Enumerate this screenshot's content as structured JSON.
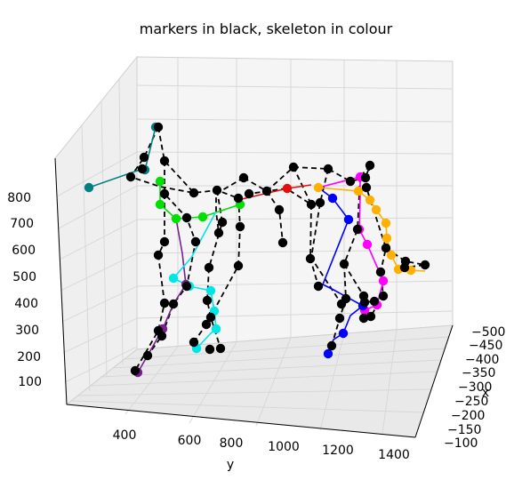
{
  "chart_data": {
    "type": "3d-scatter-line",
    "title": "markers in black, skeleton in colour",
    "xlabel": "x",
    "ylabel": "y",
    "zlabel": "",
    "x_ticks": [
      "-500",
      "-450",
      "-400",
      "-350",
      "-300",
      "-250",
      "-200",
      "-150",
      "-100"
    ],
    "y_ticks": [
      "400",
      "600",
      "800",
      "1000",
      "1200",
      "1400"
    ],
    "z_ticks": [
      "100",
      "200",
      "300",
      "400",
      "500",
      "600",
      "700",
      "800"
    ],
    "grid": true,
    "marker_color": "#000000",
    "series": [
      {
        "color": "#000000",
        "style": "dashed",
        "segments": [
          [
            [
              178,
              143
            ],
            [
              162,
              177
            ],
            [
              147,
              199
            ],
            [
              180,
              210
            ],
            [
              218,
              217
            ],
            [
              244,
              214
            ],
            [
              268,
              223
            ]
          ],
          [
            [
              178,
              143
            ],
            [
              185,
              181
            ],
            [
              218,
              217
            ]
          ],
          [
            [
              185,
              181
            ],
            [
              185,
              218
            ],
            [
              210,
              245
            ],
            [
              220,
              272
            ],
            [
              210,
              322
            ],
            [
              195,
              342
            ],
            [
              182,
              378
            ],
            [
              166,
              400
            ]
          ],
          [
            [
              185,
              218
            ],
            [
              185,
              272
            ],
            [
              178,
              287
            ],
            [
              185,
              341
            ],
            [
              178,
              372
            ],
            [
              152,
              417
            ]
          ],
          [
            [
              244,
              214
            ],
            [
              250,
              250
            ],
            [
              235,
              301
            ],
            [
              233,
              338
            ],
            [
              237,
              357
            ],
            [
              248,
              392
            ],
            [
              236,
              393
            ]
          ],
          [
            [
              268,
              223
            ],
            [
              270,
              255
            ],
            [
              268,
              299
            ],
            [
              232,
              365
            ],
            [
              218,
              385
            ]
          ],
          [
            [
              274,
              200
            ],
            [
              243,
              218
            ],
            [
              243,
              238
            ],
            [
              246,
              262
            ]
          ],
          [
            [
              274,
              200
            ],
            [
              300,
              215
            ],
            [
              330,
              188
            ],
            [
              350,
              230
            ],
            [
              322,
              212
            ],
            [
              280,
              218
            ]
          ],
          [
            [
              330,
              188
            ],
            [
              369,
              190
            ],
            [
              394,
              204
            ],
            [
              411,
              200
            ],
            [
              416,
              186
            ],
            [
              405,
              199
            ]
          ],
          [
            [
              300,
              215
            ],
            [
              314,
              236
            ],
            [
              318,
              273
            ],
            [
              312,
              275
            ]
          ],
          [
            [
              350,
              230
            ],
            [
              349,
              291
            ],
            [
              358,
              322
            ],
            [
              361,
              325
            ]
          ],
          [
            [
              369,
              190
            ],
            [
              360,
              228
            ],
            [
              350,
              290
            ],
            [
              384,
              342
            ]
          ],
          [
            [
              405,
              199
            ],
            [
              402,
              258
            ],
            [
              387,
              297
            ],
            [
              389,
              336
            ],
            [
              382,
              358
            ],
            [
              373,
              389
            ]
          ],
          [
            [
              416,
              186
            ],
            [
              412,
              211
            ],
            [
              434,
              279
            ],
            [
              428,
              306
            ],
            [
              431,
              333
            ],
            [
              426,
              340
            ],
            [
              417,
              356
            ],
            [
              409,
              358
            ]
          ],
          [
            [
              387,
              297
            ],
            [
              409,
              333
            ],
            [
              410,
              340
            ],
            [
              421,
              339
            ]
          ],
          [
            [
              434,
              279
            ],
            [
              456,
              294
            ],
            [
              478,
              298
            ],
            [
              455,
              301
            ]
          ]
        ]
      },
      {
        "color": "#008080",
        "style": "solid",
        "segments": [
          [
            [
              100,
              211
            ],
            [
              160,
              190
            ],
            [
              163,
              191
            ],
            [
              175,
              143
            ]
          ]
        ]
      },
      {
        "color": "#00e000",
        "style": "solid",
        "segments": [
          [
            [
              180,
              204
            ],
            [
              180,
              230
            ],
            [
              198,
              246
            ],
            [
              228,
              244
            ],
            [
              270,
              230
            ]
          ]
        ]
      },
      {
        "color": "#7a1f8f",
        "style": "solid",
        "segments": [
          [
            [
              198,
              246
            ],
            [
              205,
              285
            ],
            [
              209,
              320
            ],
            [
              195,
              342
            ],
            [
              183,
              370
            ],
            [
              166,
              400
            ],
            [
              155,
              419
            ]
          ]
        ]
      },
      {
        "color": "#00e5e5",
        "style": "solid",
        "segments": [
          [
            [
              243,
              238
            ],
            [
              215,
              290
            ],
            [
              195,
              313
            ],
            [
              213,
              322
            ],
            [
              237,
              327
            ],
            [
              241,
              350
            ],
            [
              243,
              370
            ],
            [
              237,
              375
            ],
            [
              221,
              392
            ]
          ]
        ]
      },
      {
        "color": "#e01010",
        "style": "solid",
        "segments": [
          [
            [
              272,
              224
            ],
            [
              323,
              212
            ],
            [
              350,
              208
            ]
          ]
        ]
      },
      {
        "color": "#ffb000",
        "style": "solid",
        "segments": [
          [
            [
              358,
              211
            ],
            [
              403,
              215
            ],
            [
              416,
              225
            ],
            [
              423,
              236
            ],
            [
              434,
              251
            ],
            [
              435,
              268
            ],
            [
              440,
              287
            ],
            [
              448,
              303
            ],
            [
              462,
              304
            ],
            [
              478,
              305
            ]
          ]
        ]
      },
      {
        "color": "#ff00ff",
        "style": "solid",
        "segments": [
          [
            [
              358,
              211
            ],
            [
              405,
              199
            ],
            [
              405,
              222
            ],
            [
              404,
              258
            ],
            [
              413,
              275
            ],
            [
              431,
              316
            ],
            [
              424,
              343
            ],
            [
              410,
              349
            ]
          ]
        ]
      },
      {
        "color": "#0000ff",
        "style": "solid",
        "segments": [
          [
            [
              358,
              211
            ],
            [
              374,
              223
            ],
            [
              392,
              247
            ],
            [
              363,
              320
            ],
            [
              375,
              326
            ],
            [
              408,
              344
            ],
            [
              394,
              355
            ],
            [
              386,
              375
            ],
            [
              375,
              382
            ],
            [
              369,
              398
            ]
          ]
        ]
      }
    ],
    "markers": [
      [
        178,
        143
      ],
      [
        162,
        177
      ],
      [
        147,
        199
      ],
      [
        185,
        181
      ],
      [
        218,
        217
      ],
      [
        244,
        214
      ],
      [
        268,
        223
      ],
      [
        185,
        218
      ],
      [
        210,
        245
      ],
      [
        220,
        272
      ],
      [
        210,
        322
      ],
      [
        195,
        342
      ],
      [
        182,
        378
      ],
      [
        166,
        400
      ],
      [
        185,
        272
      ],
      [
        178,
        287
      ],
      [
        185,
        341
      ],
      [
        178,
        372
      ],
      [
        152,
        417
      ],
      [
        250,
        250
      ],
      [
        235,
        301
      ],
      [
        233,
        338
      ],
      [
        237,
        357
      ],
      [
        248,
        392
      ],
      [
        236,
        393
      ],
      [
        270,
        255
      ],
      [
        268,
        299
      ],
      [
        232,
        365
      ],
      [
        218,
        385
      ],
      [
        274,
        200
      ],
      [
        300,
        215
      ],
      [
        330,
        188
      ],
      [
        350,
        230
      ],
      [
        280,
        218
      ],
      [
        369,
        190
      ],
      [
        394,
        204
      ],
      [
        411,
        200
      ],
      [
        416,
        186
      ],
      [
        314,
        236
      ],
      [
        318,
        273
      ],
      [
        349,
        291
      ],
      [
        358,
        322
      ],
      [
        360,
        228
      ],
      [
        384,
        342
      ],
      [
        402,
        258
      ],
      [
        387,
        297
      ],
      [
        389,
        336
      ],
      [
        382,
        358
      ],
      [
        373,
        389
      ],
      [
        412,
        211
      ],
      [
        434,
        279
      ],
      [
        428,
        306
      ],
      [
        431,
        333
      ],
      [
        417,
        356
      ],
      [
        409,
        358
      ],
      [
        409,
        333
      ],
      [
        410,
        340
      ],
      [
        421,
        339
      ],
      [
        456,
        294
      ],
      [
        478,
        298
      ],
      [
        455,
        301
      ],
      [
        160,
        190
      ],
      [
        246,
        262
      ]
    ],
    "colored_markers": [
      {
        "color": "#008080",
        "points": [
          [
            100,
            211
          ],
          [
            175,
            143
          ],
          [
            163,
            191
          ]
        ]
      },
      {
        "color": "#00e000",
        "points": [
          [
            180,
            204
          ],
          [
            180,
            230
          ],
          [
            198,
            246
          ],
          [
            228,
            244
          ],
          [
            270,
            230
          ]
        ]
      },
      {
        "color": "#7a1f8f",
        "points": [
          [
            155,
            419
          ],
          [
            183,
            370
          ],
          [
            209,
            320
          ]
        ]
      },
      {
        "color": "#00e5e5",
        "points": [
          [
            195,
            313
          ],
          [
            213,
            322
          ],
          [
            237,
            327
          ],
          [
            241,
            350
          ],
          [
            221,
            392
          ],
          [
            243,
            370
          ]
        ]
      },
      {
        "color": "#e01010",
        "points": [
          [
            323,
            212
          ]
        ]
      },
      {
        "color": "#ffb000",
        "points": [
          [
            358,
            211
          ],
          [
            403,
            215
          ],
          [
            416,
            225
          ],
          [
            423,
            236
          ],
          [
            434,
            251
          ],
          [
            435,
            268
          ],
          [
            440,
            287
          ],
          [
            448,
            303
          ],
          [
            462,
            304
          ]
        ]
      },
      {
        "color": "#ff00ff",
        "points": [
          [
            405,
            199
          ],
          [
            404,
            258
          ],
          [
            413,
            275
          ],
          [
            431,
            316
          ],
          [
            424,
            343
          ],
          [
            410,
            349
          ]
        ]
      },
      {
        "color": "#0000ff",
        "points": [
          [
            374,
            223
          ],
          [
            392,
            247
          ],
          [
            408,
            344
          ],
          [
            386,
            375
          ],
          [
            369,
            398
          ]
        ]
      }
    ]
  }
}
